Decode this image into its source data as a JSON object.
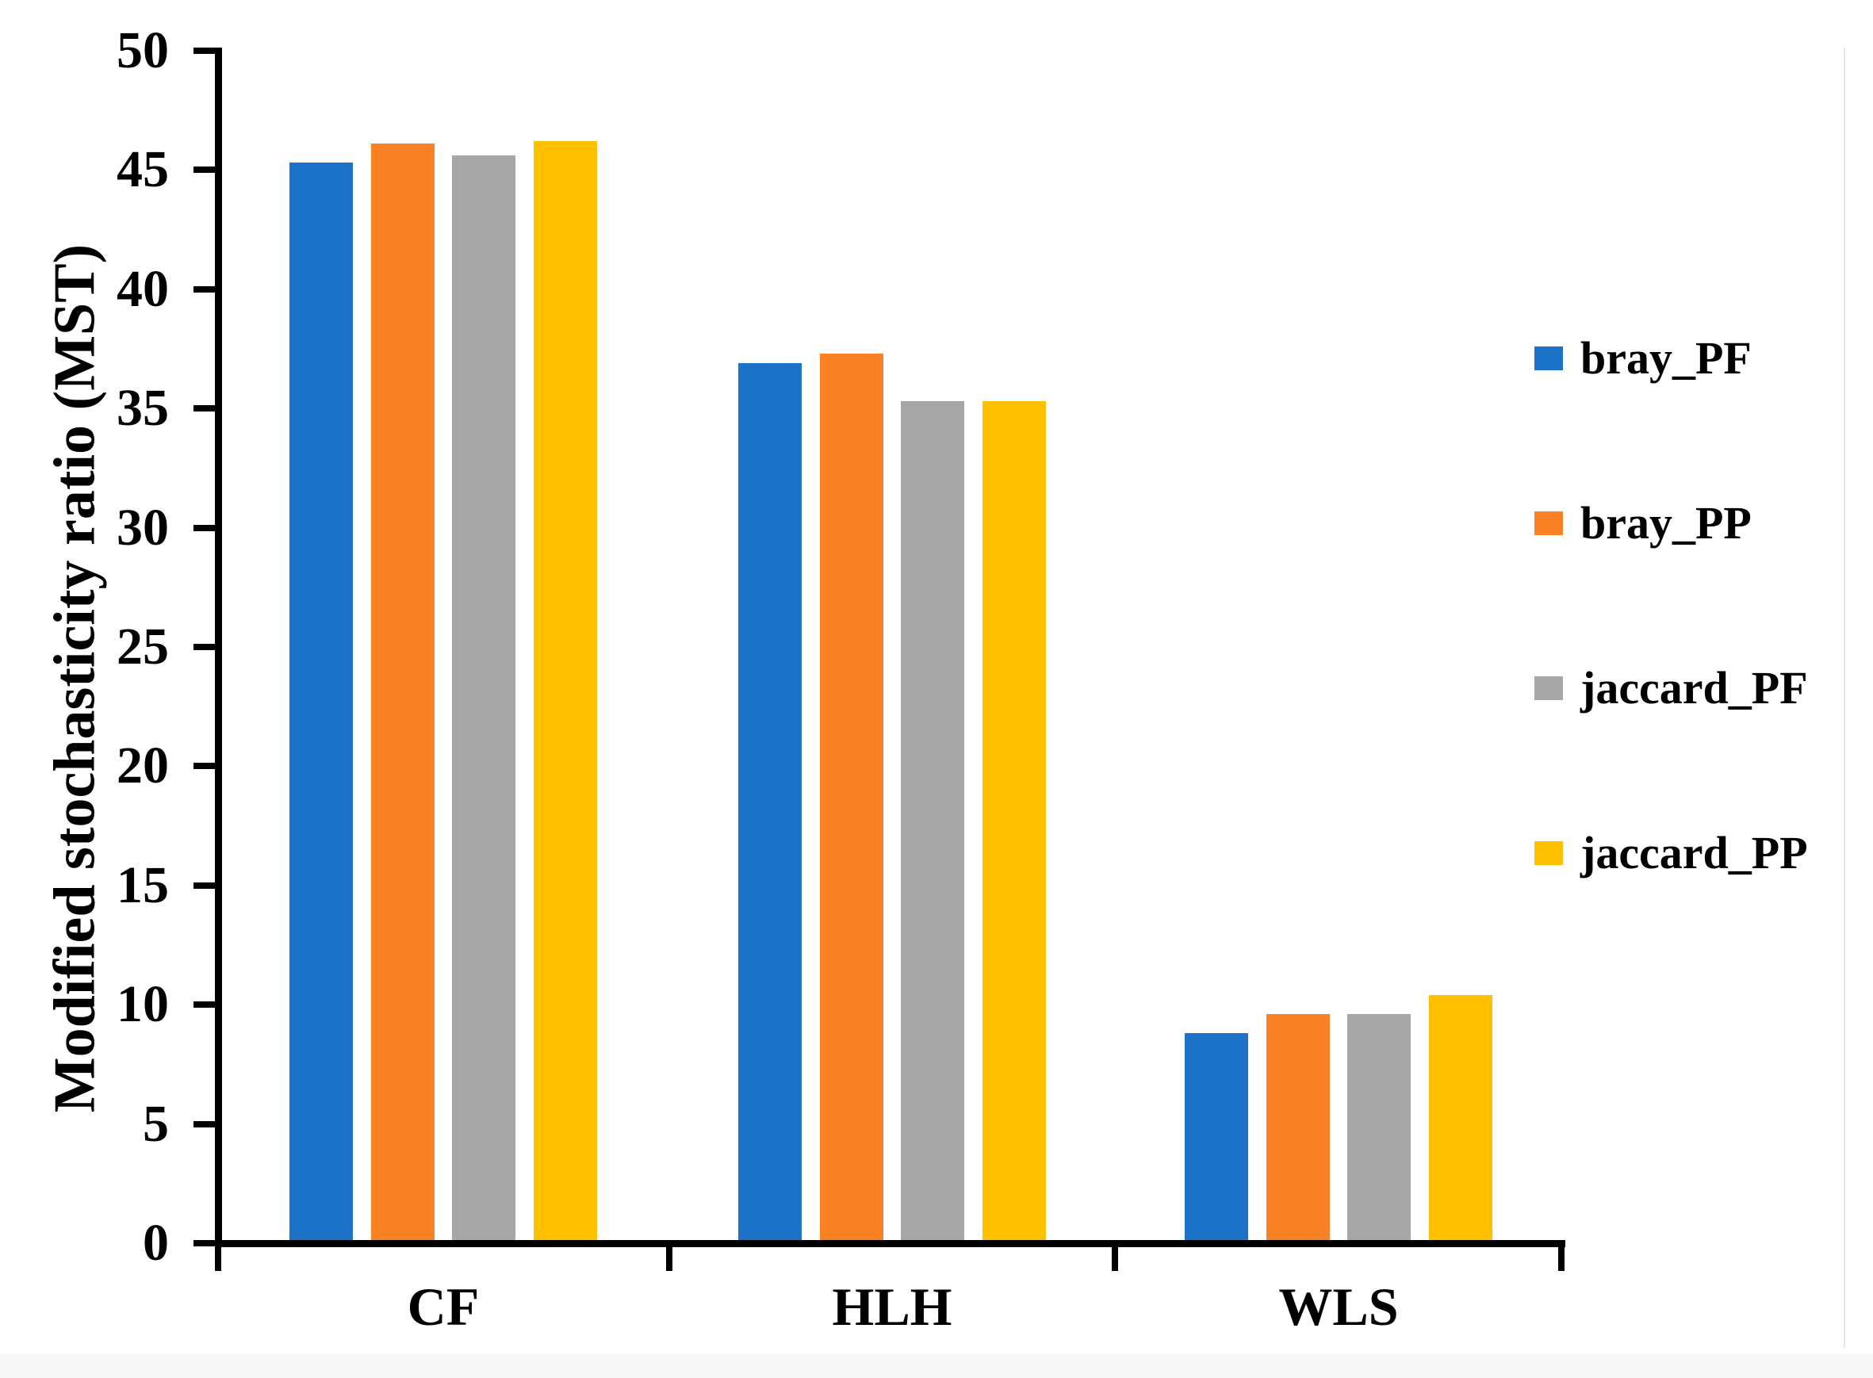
{
  "chart_data": {
    "type": "bar",
    "title": "",
    "xlabel": "",
    "ylabel": "Modified stochasticity ratio (MST)",
    "categories": [
      "CF",
      "HLH",
      "WLS"
    ],
    "series": [
      {
        "name": "bray_PF",
        "color": "#1B72C8",
        "values": [
          45.3,
          36.9,
          8.8
        ]
      },
      {
        "name": "bray_PP",
        "color": "#FB8125",
        "values": [
          46.1,
          37.3,
          9.6
        ]
      },
      {
        "name": "jaccard_PF",
        "color": "#A6A6A6",
        "values": [
          45.6,
          35.3,
          9.6
        ]
      },
      {
        "name": "jaccard_PP",
        "color": "#FFC000",
        "values": [
          46.2,
          35.3,
          10.4
        ]
      }
    ],
    "ylim": [
      0,
      50
    ],
    "yticks": [
      0,
      5,
      10,
      15,
      20,
      25,
      30,
      35,
      40,
      45,
      50
    ],
    "grid": false,
    "legend_position": "right",
    "axis_color": "#000000"
  }
}
